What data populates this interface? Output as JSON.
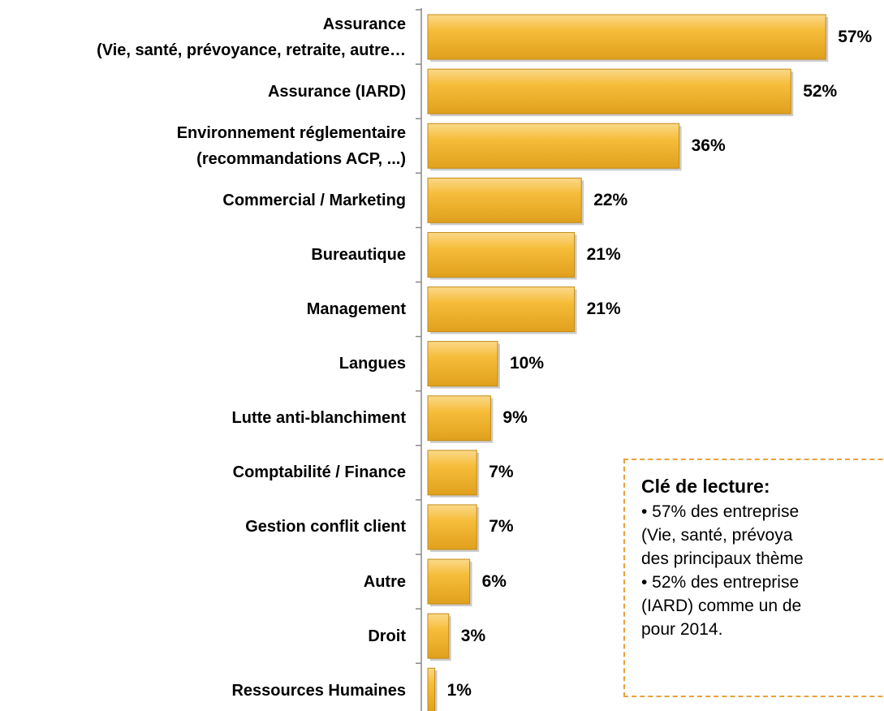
{
  "chart_data": {
    "type": "barh",
    "categories": [
      "Assurance\n(Vie, santé, prévoyance, retraite, autre…",
      "Assurance (IARD)",
      "Environnement réglementaire\n(recommandations ACP, ...)",
      "Commercial / Marketing",
      "Bureautique",
      "Management",
      "Langues",
      "Lutte anti-blanchiment",
      "Comptabilité / Finance",
      "Gestion conflit client",
      "Autre",
      "Droit",
      "Ressources Humaines"
    ],
    "values": [
      57,
      52,
      36,
      22,
      21,
      21,
      10,
      9,
      7,
      7,
      6,
      3,
      1
    ],
    "value_labels": [
      "57%",
      "52%",
      "36%",
      "22%",
      "21%",
      "21%",
      "10%",
      "9%",
      "7%",
      "7%",
      "6%",
      "3%",
      "1%"
    ],
    "color": "#f3b52c",
    "annotation": {
      "title": "Clé de lecture:",
      "lines": [
        "• 57% des entreprise",
        "(Vie, santé, prévoya",
        "des principaux thème",
        "• 52% des entreprise",
        "(IARD) comme un de",
        "pour 2014."
      ]
    }
  }
}
